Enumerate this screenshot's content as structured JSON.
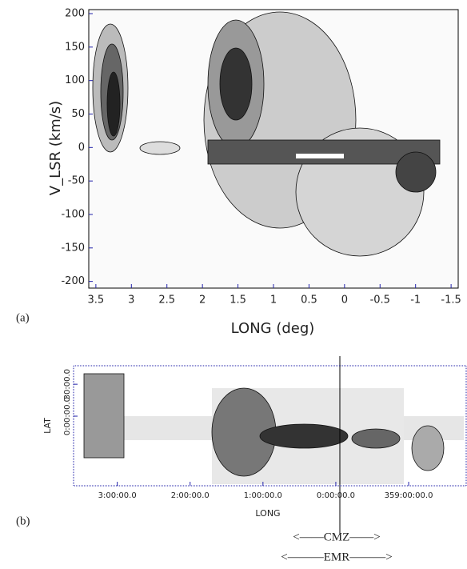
{
  "chart_data": [
    {
      "type": "contour",
      "x_label": "LONG (deg)",
      "y_label": "V_LSR (km/s)",
      "xlim": [
        3.6,
        -1.6
      ],
      "ylim": [
        -210,
        206
      ],
      "xticks": [
        3.5,
        3,
        2.5,
        2,
        1.5,
        1,
        0.5,
        0,
        -0.5,
        -1,
        -1.5
      ],
      "yticks": [
        -200,
        -150,
        -100,
        -50,
        0,
        50,
        100,
        150,
        200
      ]
    },
    {
      "type": "contour",
      "x_label": "LONG",
      "y_label": "LAT",
      "xlim": [
        3.6,
        -1.79
      ],
      "ylim": [
        -1.09,
        0.79
      ],
      "xticks": [
        {
          "value": 3,
          "label": "3:00:00.0"
        },
        {
          "value": 2,
          "label": "2:00:00.0"
        },
        {
          "value": 1,
          "label": "1:00:00.0"
        },
        {
          "value": 0,
          "label": "0:00:00.0"
        },
        {
          "value": -1,
          "label": "359:00:00.0"
        }
      ],
      "yticks": [
        {
          "value": 0,
          "label": "0:00:00.0"
        },
        {
          "value": 0.5,
          "label": "30:00.0"
        }
      ]
    }
  ],
  "annotations": {
    "panel_a": "(a)",
    "panel_b": "(b)",
    "cmz": "<——CMZ——>",
    "emr": "<———EMR———>"
  }
}
